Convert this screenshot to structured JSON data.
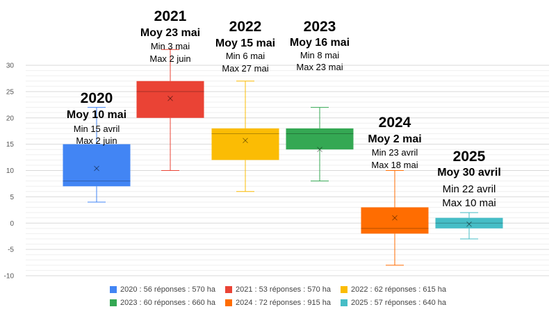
{
  "chart_data": {
    "type": "boxplot",
    "y_axis": {
      "min": -10,
      "max": 30,
      "step": 5,
      "minor_step": 1,
      "grid": true
    },
    "series": [
      {
        "name": "2020",
        "color": "#4285f4",
        "min": 4,
        "q1": 7,
        "median": 8,
        "q3": 15,
        "max": 22,
        "mean": 10.4,
        "legend": "2020 : 56 réponses : 570 ha",
        "annotation": {
          "year": "2020",
          "avg": "Moy 10 mai",
          "min": "Min 15 avril",
          "max": "Max 2 juin"
        }
      },
      {
        "name": "2021",
        "color": "#ea4335",
        "min": 10,
        "q1": 20,
        "median": 25,
        "q3": 27,
        "max": 33,
        "mean": 23.7,
        "legend": "2021 : 53 réponses : 570 ha",
        "annotation": {
          "year": "2021",
          "avg": "Moy 23 mai",
          "min": "Min 3 mai",
          "max": "Max 2 juin"
        }
      },
      {
        "name": "2022",
        "color": "#fbbc04",
        "min": 6,
        "q1": 12,
        "median": 17,
        "q3": 18,
        "max": 27,
        "mean": 15.7,
        "legend": "2022 : 62 réponses : 615 ha",
        "annotation": {
          "year": "2022",
          "avg": "Moy 15 mai",
          "min": "Min 6 mai",
          "max": "Max 27 mai"
        }
      },
      {
        "name": "2023",
        "color": "#34a853",
        "min": 8,
        "q1": 14,
        "median": 17,
        "q3": 18,
        "max": 22,
        "mean": 14,
        "legend": "2023 : 60 réponses : 660 ha",
        "annotation": {
          "year": "2023",
          "avg": "Moy 16 mai",
          "min": "Min 8 mai",
          "max": "Max 23 mai"
        }
      },
      {
        "name": "2024",
        "color": "#ff6d01",
        "min": -8,
        "q1": -2,
        "median": -1,
        "q3": 3,
        "max": 10,
        "mean": 1,
        "legend": "2024 : 72 réponses : 915 ha",
        "annotation": {
          "year": "2024",
          "avg": "Moy 2 mai",
          "min": "Min 23 avril",
          "max": "Max 18 mai"
        }
      },
      {
        "name": "2025",
        "color": "#46bdc6",
        "min": -3,
        "q1": -1,
        "median": 0,
        "q3": 1,
        "max": 2,
        "mean": -0.2,
        "legend": "2025 : 57 réponses : 640 ha",
        "annotation": {
          "year": "2025",
          "avg": "Moy 30 avril",
          "min": "Min 22 avril",
          "max": "Max 10 mai"
        }
      }
    ]
  }
}
